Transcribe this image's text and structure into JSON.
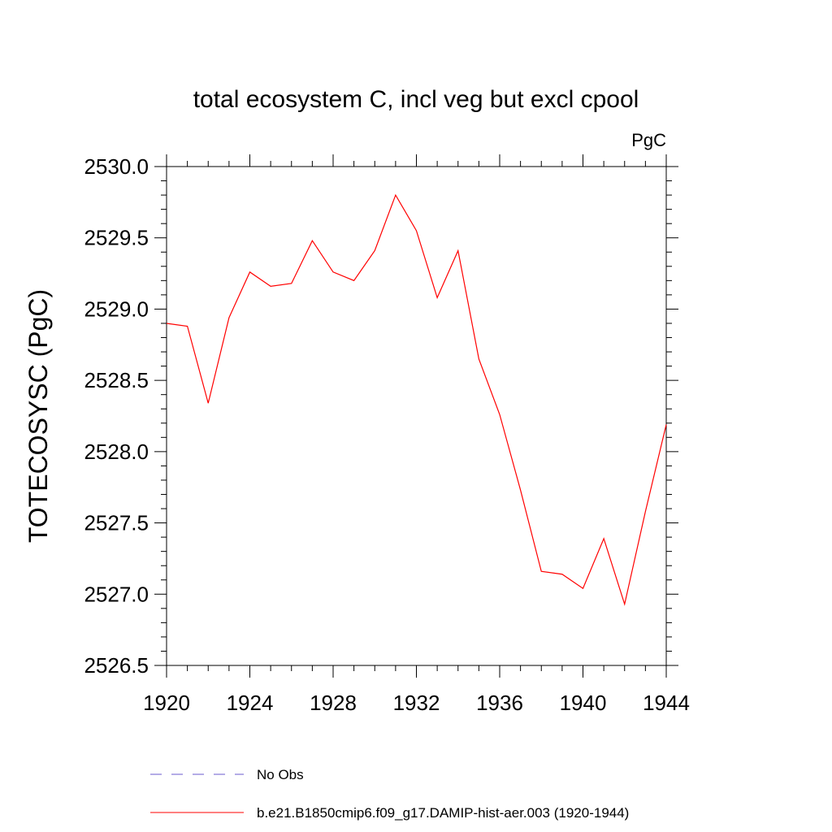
{
  "chart_data": {
    "type": "line",
    "title": "total ecosystem C, incl veg but excl cpool",
    "units_label": "PgC",
    "ylabel": "TOTECOSYSC  (PgC)",
    "xlabel": "",
    "xlim": [
      1920,
      1944
    ],
    "ylim": [
      2526.5,
      2530.0
    ],
    "x_ticks": [
      "1920",
      "1924",
      "1928",
      "1932",
      "1936",
      "1940",
      "1944"
    ],
    "y_ticks": [
      "2530.0",
      "2529.5",
      "2529.0",
      "2528.5",
      "2528.0",
      "2527.5",
      "2527.0",
      "2526.5"
    ],
    "grid": false,
    "legend_position": "bottom",
    "series": [
      {
        "name": "b.e21.B1850cmip6.f09_g17.DAMIP-hist-aer.003 (1920-1944)",
        "color": "#ff0000",
        "x": [
          1920,
          1921,
          1922,
          1923,
          1924,
          1925,
          1926,
          1927,
          1928,
          1929,
          1930,
          1931,
          1932,
          1933,
          1934,
          1935,
          1936,
          1937,
          1938,
          1939,
          1940,
          1941,
          1942,
          1943,
          1944
        ],
        "values": [
          2528.9,
          2528.88,
          2528.34,
          2528.94,
          2529.26,
          2529.16,
          2529.18,
          2529.48,
          2529.26,
          2529.2,
          2529.41,
          2529.8,
          2529.55,
          2529.08,
          2529.41,
          2528.65,
          2528.26,
          2527.73,
          2527.16,
          2527.14,
          2527.04,
          2527.39,
          2526.93,
          2527.58,
          2528.19
        ]
      }
    ],
    "legend": [
      {
        "label": "No Obs",
        "style": "dashed",
        "color": "#6a5acd"
      },
      {
        "label": "b.e21.B1850cmip6.f09_g17.DAMIP-hist-aer.003 (1920-1944)",
        "style": "solid",
        "color": "#ff0000"
      }
    ]
  }
}
